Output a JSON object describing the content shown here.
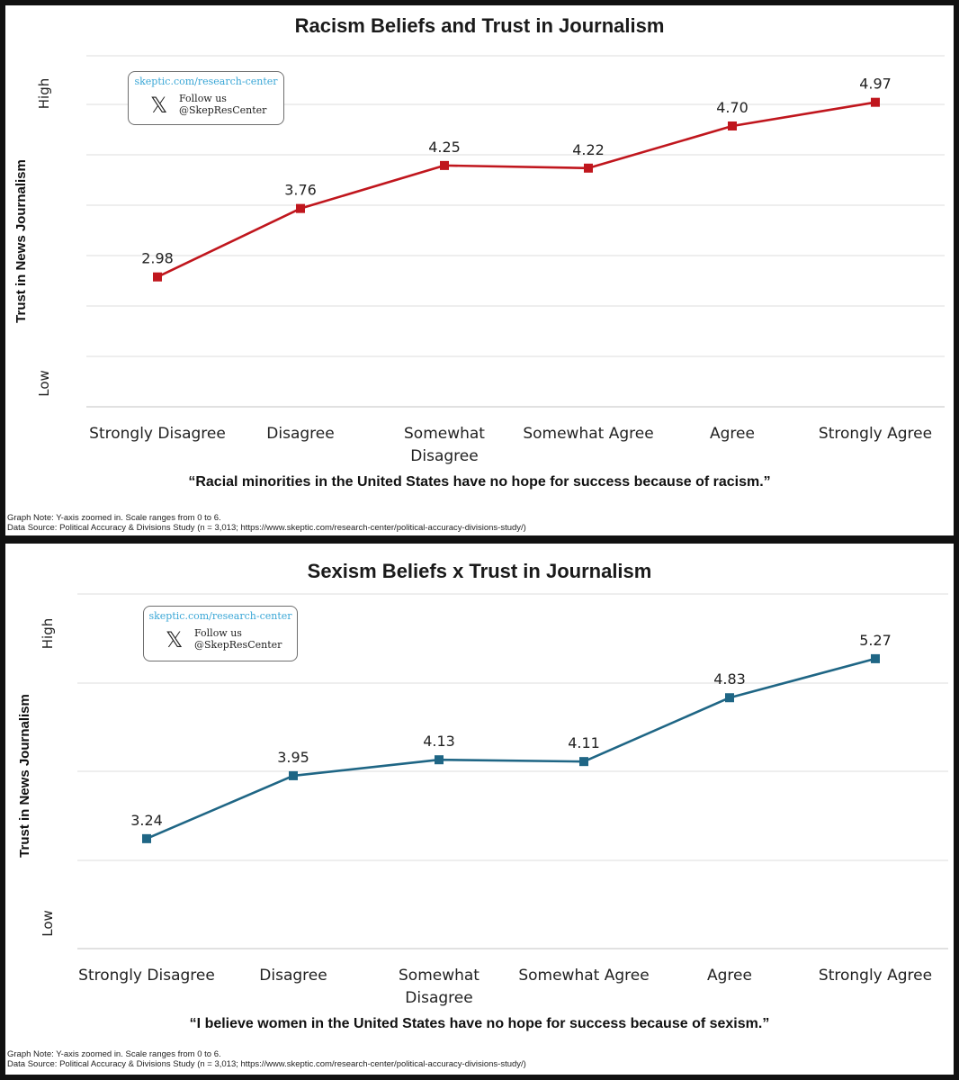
{
  "logo": {
    "url": "skeptic.com/research-center",
    "x_glyph": "𝕏",
    "follow": "Follow us",
    "handle": "@SkepResCenter"
  },
  "chart_data": [
    {
      "type": "line",
      "title": "Racism Beliefs and Trust in Journalism",
      "ylabel": "Trust in News Journalism",
      "ytick_labels": {
        "high": "High",
        "low": "Low"
      },
      "categories": [
        "Strongly Disagree",
        "Disagree",
        "Somewhat Disagree",
        "Somewhat Agree",
        "Agree",
        "Strongly Agree"
      ],
      "values": [
        2.98,
        3.76,
        4.25,
        4.22,
        4.7,
        4.97
      ],
      "data_labels": [
        "2.98",
        "3.76",
        "4.25",
        "4.22",
        "4.70",
        "4.97"
      ],
      "ylim": [
        1.5,
        5.5
      ],
      "grid": true,
      "color": "#c0161d",
      "caption": "“Racial minorities in the United States have no hope for success because of racism.”",
      "note": "Graph Note: Y-axis zoomed in. Scale ranges from 0 to 6.",
      "source": "Data Source: Political Accuracy & Divisions Study (n = 3,013; https://www.skeptic.com/research-center/political-accuracy-divisions-study/)"
    },
    {
      "type": "line",
      "title": "Sexism Beliefs x Trust in Journalism",
      "ylabel": "Trust in News Journalism",
      "ytick_labels": {
        "high": "High",
        "low": "Low"
      },
      "categories": [
        "Strongly Disagree",
        "Disagree",
        "Somewhat Disagree",
        "Somewhat Agree",
        "Agree",
        "Strongly Agree"
      ],
      "values": [
        3.24,
        3.95,
        4.13,
        4.11,
        4.83,
        5.27
      ],
      "data_labels": [
        "3.24",
        "3.95",
        "4.13",
        "4.11",
        "4.83",
        "5.27"
      ],
      "ylim": [
        2.0,
        6.0
      ],
      "grid": true,
      "color": "#1f6685",
      "caption": "“I believe women in the United States have no hope for success because of sexism.”",
      "note": "Graph Note: Y-axis zoomed in. Scale ranges from 0 to 6.",
      "source": "Data Source: Political Accuracy & Divisions Study (n = 3,013; https://www.skeptic.com/research-center/political-accuracy-divisions-study/)"
    }
  ]
}
